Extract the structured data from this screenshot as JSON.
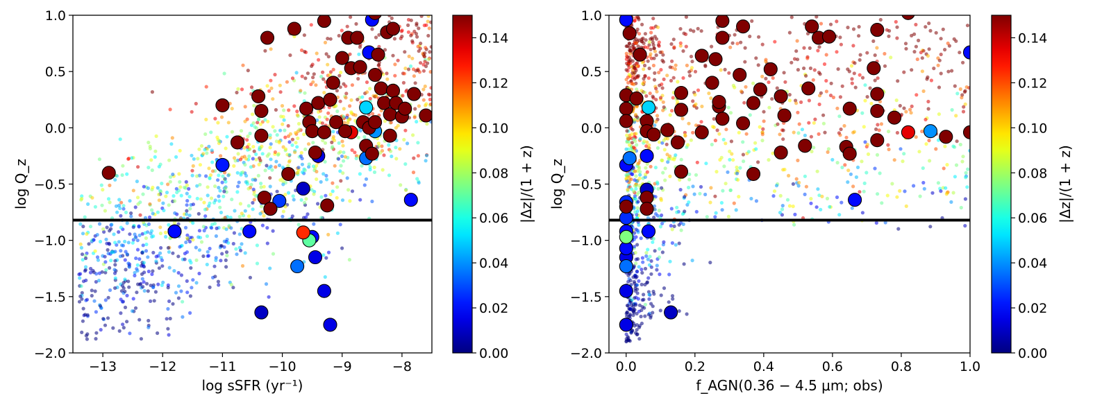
{
  "colorbar": {
    "label_text": "|Δz|/(1 + z)",
    "range": [
      0,
      0.15
    ],
    "ticks": [
      "0.00",
      "0.02",
      "0.04",
      "0.06",
      "0.08",
      "0.10",
      "0.12",
      "0.14"
    ],
    "colormap": "jet"
  },
  "chart_data": [
    {
      "type": "scatter",
      "id": "left",
      "xlabel": "log sSFR (yr⁻¹)",
      "ylabel": "log Q_z",
      "xlim": [
        -13.5,
        -7.5
      ],
      "ylim": [
        -2.0,
        1.0
      ],
      "xticks": [
        -13,
        -12,
        -11,
        -10,
        -9,
        -8
      ],
      "xtick_labels": [
        "−13",
        "−12",
        "−11",
        "−10",
        "−9",
        "−8"
      ],
      "yticks": [
        -2.0,
        -1.5,
        -1.0,
        -0.5,
        0.0,
        0.5,
        1.0
      ],
      "ytick_labels": [
        "−2.0",
        "−1.5",
        "−1.0",
        "−0.5",
        "0.0",
        "0.5",
        "1.0"
      ],
      "hline": -0.82,
      "large_points": [
        [
          -12.9,
          -0.4,
          0.15
        ],
        [
          -11.0,
          0.2,
          0.15
        ],
        [
          -10.75,
          -0.13,
          0.15
        ],
        [
          -10.4,
          0.28,
          0.15
        ],
        [
          -10.35,
          0.15,
          0.15
        ],
        [
          -10.35,
          -0.07,
          0.15
        ],
        [
          -10.25,
          0.8,
          0.15
        ],
        [
          -9.8,
          0.88,
          0.15
        ],
        [
          -9.9,
          -0.41,
          0.15
        ],
        [
          -10.3,
          -0.62,
          0.15
        ],
        [
          -10.2,
          -0.72,
          0.15
        ],
        [
          -9.6,
          0.17,
          0.15
        ],
        [
          -9.55,
          0.05,
          0.15
        ],
        [
          -9.5,
          -0.03,
          0.15
        ],
        [
          -9.45,
          -0.22,
          0.15
        ],
        [
          -9.4,
          0.22,
          0.15
        ],
        [
          -9.3,
          0.95,
          0.15
        ],
        [
          -9.3,
          -0.04,
          0.15
        ],
        [
          -9.25,
          -0.69,
          0.15
        ],
        [
          -9.2,
          0.25,
          0.15
        ],
        [
          -9.15,
          0.4,
          0.15
        ],
        [
          -9.1,
          0.05,
          0.15
        ],
        [
          -9.0,
          0.62,
          0.15
        ],
        [
          -8.95,
          -0.03,
          0.15
        ],
        [
          -8.9,
          0.8,
          0.15
        ],
        [
          -8.85,
          0.53,
          0.15
        ],
        [
          -8.75,
          0.8,
          0.15
        ],
        [
          -8.7,
          0.54,
          0.15
        ],
        [
          -8.65,
          0.05,
          0.15
        ],
        [
          -8.6,
          -0.16,
          0.15
        ],
        [
          -8.55,
          0.0,
          0.15
        ],
        [
          -8.5,
          -0.23,
          0.15
        ],
        [
          -8.45,
          0.47,
          0.15
        ],
        [
          -8.45,
          0.05,
          0.15
        ],
        [
          -8.4,
          0.65,
          0.15
        ],
        [
          -8.35,
          0.35,
          0.15
        ],
        [
          -8.3,
          0.22,
          0.15
        ],
        [
          -8.25,
          0.85,
          0.15
        ],
        [
          -8.2,
          -0.07,
          0.15
        ],
        [
          -8.2,
          0.12,
          0.15
        ],
        [
          -8.15,
          0.33,
          0.15
        ],
        [
          -8.1,
          0.22,
          0.15
        ],
        [
          -8.0,
          0.1,
          0.15
        ],
        [
          -7.95,
          0.17,
          0.15
        ],
        [
          -7.8,
          0.3,
          0.15
        ],
        [
          -7.6,
          0.11,
          0.15
        ],
        [
          -8.15,
          0.88,
          0.15
        ],
        [
          -8.45,
          1.02,
          0.15
        ],
        [
          -8.85,
          -0.04,
          0.135
        ],
        [
          -9.65,
          -0.93,
          0.125
        ],
        [
          -9.55,
          -1.0,
          0.07
        ],
        [
          -8.6,
          0.18,
          0.05
        ],
        [
          -8.45,
          -0.03,
          0.04
        ],
        [
          -8.6,
          -0.27,
          0.035
        ],
        [
          -9.75,
          -1.23,
          0.035
        ],
        [
          -10.05,
          -0.65,
          0.027
        ],
        [
          -11.0,
          -0.33,
          0.022
        ],
        [
          -11.8,
          -0.92,
          0.02
        ],
        [
          -10.55,
          -0.92,
          0.02
        ],
        [
          -9.5,
          -0.97,
          0.02
        ],
        [
          -9.45,
          -1.15,
          0.015
        ],
        [
          -9.3,
          -1.45,
          0.015
        ],
        [
          -9.2,
          -1.75,
          0.015
        ],
        [
          -10.35,
          -1.64,
          0.01
        ],
        [
          -9.65,
          -0.54,
          0.01
        ],
        [
          -9.4,
          -0.25,
          0.015
        ],
        [
          -7.85,
          -0.64,
          0.02
        ],
        [
          -8.55,
          0.67,
          0.02
        ],
        [
          -8.5,
          0.96,
          0.02
        ]
      ],
      "small_cloud": {
        "seed": 42,
        "count": 1500
      }
    },
    {
      "type": "scatter",
      "id": "right",
      "xlabel": "f_AGN(0.36 − 4.5 μm;  obs)",
      "ylabel": "log Q_z",
      "xlim": [
        -0.05,
        1.0
      ],
      "ylim": [
        -2.0,
        1.0
      ],
      "xticks": [
        0.0,
        0.2,
        0.4,
        0.6,
        0.8,
        1.0
      ],
      "xtick_labels": [
        "0.0",
        "0.2",
        "0.4",
        "0.6",
        "0.8",
        "1.0"
      ],
      "yticks": [
        -2.0,
        -1.5,
        -1.0,
        -0.5,
        0.0,
        0.5,
        1.0
      ],
      "ytick_labels": [
        "−2.0",
        "−1.5",
        "−1.0",
        "−0.5",
        "0.0",
        "0.5",
        "1.0"
      ],
      "hline": -0.82,
      "large_points": [
        [
          0.01,
          0.84,
          0.15
        ],
        [
          0.04,
          0.65,
          0.15
        ],
        [
          0.0,
          0.29,
          0.15
        ],
        [
          0.03,
          0.26,
          0.15
        ],
        [
          0.0,
          0.17,
          0.15
        ],
        [
          0.0,
          0.06,
          0.15
        ],
        [
          0.06,
          0.06,
          0.15
        ],
        [
          0.06,
          -0.03,
          0.15
        ],
        [
          0.08,
          -0.06,
          0.15
        ],
        [
          0.0,
          -0.7,
          0.15
        ],
        [
          0.06,
          -0.62,
          0.15
        ],
        [
          0.06,
          -0.72,
          0.15
        ],
        [
          0.12,
          -0.02,
          0.15
        ],
        [
          0.15,
          -0.13,
          0.15
        ],
        [
          0.16,
          0.31,
          0.15
        ],
        [
          0.16,
          0.16,
          0.15
        ],
        [
          0.16,
          -0.39,
          0.15
        ],
        [
          0.22,
          0.64,
          0.15
        ],
        [
          0.22,
          -0.04,
          0.15
        ],
        [
          0.25,
          0.4,
          0.15
        ],
        [
          0.26,
          0.61,
          0.15
        ],
        [
          0.27,
          0.19,
          0.15
        ],
        [
          0.27,
          0.23,
          0.15
        ],
        [
          0.28,
          0.08,
          0.15
        ],
        [
          0.28,
          0.8,
          0.15
        ],
        [
          0.28,
          0.95,
          0.15
        ],
        [
          0.33,
          0.47,
          0.15
        ],
        [
          0.34,
          0.9,
          0.15
        ],
        [
          0.34,
          0.04,
          0.15
        ],
        [
          0.37,
          0.22,
          0.15
        ],
        [
          0.37,
          -0.41,
          0.15
        ],
        [
          0.39,
          0.34,
          0.15
        ],
        [
          0.42,
          0.52,
          0.15
        ],
        [
          0.45,
          0.28,
          0.15
        ],
        [
          0.45,
          -0.22,
          0.15
        ],
        [
          0.46,
          0.11,
          0.15
        ],
        [
          0.52,
          -0.16,
          0.15
        ],
        [
          0.53,
          0.35,
          0.15
        ],
        [
          0.54,
          0.9,
          0.15
        ],
        [
          0.56,
          0.8,
          0.15
        ],
        [
          0.59,
          0.81,
          0.15
        ],
        [
          0.64,
          -0.17,
          0.15
        ],
        [
          0.65,
          -0.23,
          0.15
        ],
        [
          0.65,
          0.17,
          0.15
        ],
        [
          0.73,
          0.87,
          0.15
        ],
        [
          0.72,
          0.53,
          0.15
        ],
        [
          0.73,
          0.3,
          0.15
        ],
        [
          0.73,
          0.15,
          0.15
        ],
        [
          0.73,
          -0.11,
          0.15
        ],
        [
          0.78,
          0.09,
          0.15
        ],
        [
          0.82,
          1.02,
          0.15
        ],
        [
          0.93,
          -0.08,
          0.15
        ],
        [
          1.0,
          -0.04,
          0.15
        ],
        [
          0.82,
          -0.04,
          0.135
        ],
        [
          0.0,
          -0.97,
          0.075
        ],
        [
          0.065,
          0.18,
          0.05
        ],
        [
          0.885,
          -0.03,
          0.04
        ],
        [
          0.01,
          -0.27,
          0.035
        ],
        [
          0.0,
          -1.23,
          0.035
        ],
        [
          0.0,
          -0.66,
          0.025
        ],
        [
          0.0,
          -0.8,
          0.025
        ],
        [
          0.0,
          -0.92,
          0.02
        ],
        [
          0.0,
          -1.07,
          0.02
        ],
        [
          0.0,
          -1.15,
          0.015
        ],
        [
          0.0,
          -1.45,
          0.015
        ],
        [
          0.0,
          -1.75,
          0.015
        ],
        [
          0.0,
          0.96,
          0.02
        ],
        [
          0.0,
          -0.33,
          0.02
        ],
        [
          0.06,
          -0.25,
          0.02
        ],
        [
          0.06,
          -0.55,
          0.01
        ],
        [
          0.065,
          -0.92,
          0.02
        ],
        [
          0.13,
          -1.64,
          0.01
        ],
        [
          0.665,
          -0.64,
          0.02
        ],
        [
          1.0,
          0.67,
          0.02
        ]
      ],
      "small_cloud": {
        "seed": 7,
        "count": 1500
      }
    }
  ]
}
